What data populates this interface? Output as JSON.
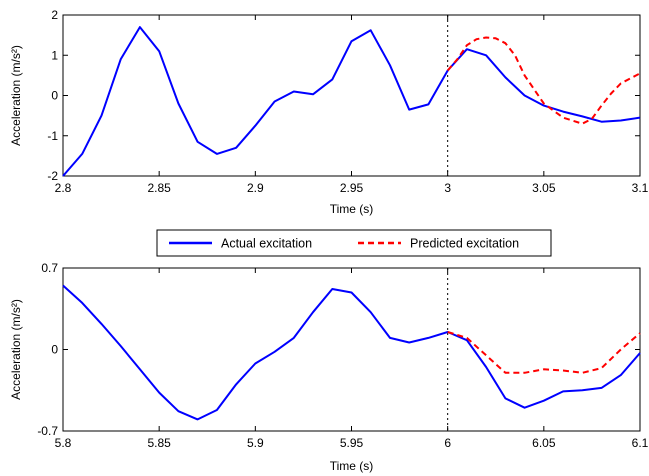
{
  "chart_data": [
    {
      "type": "line",
      "xlabel": "Time (s)",
      "ylabel": "Acceleration (m/s²)",
      "xlim": [
        2.8,
        3.1
      ],
      "ylim": [
        -2,
        2
      ],
      "xticks": [
        2.8,
        2.85,
        2.9,
        2.95,
        3,
        3.05,
        3.1
      ],
      "xtick_labels": [
        "2.8",
        "2.85",
        "2.9",
        "2.95",
        "3",
        "3.05",
        "3.1"
      ],
      "yticks": [
        -2,
        -1,
        0,
        1,
        2
      ],
      "ytick_labels": [
        "-2",
        "-1",
        "0",
        "1",
        "2"
      ],
      "divider_x": 3.0,
      "series": [
        {
          "name": "Actual excitation",
          "color": "#0000ff",
          "style": "solid",
          "x": [
            2.8,
            2.81,
            2.82,
            2.83,
            2.84,
            2.85,
            2.86,
            2.87,
            2.88,
            2.89,
            2.9,
            2.91,
            2.92,
            2.93,
            2.94,
            2.95,
            2.96,
            2.97,
            2.98,
            2.99,
            3.0,
            3.01,
            3.02,
            3.03,
            3.04,
            3.05,
            3.06,
            3.07,
            3.08,
            3.09,
            3.1
          ],
          "y": [
            -2.0,
            -1.45,
            -0.5,
            0.9,
            1.7,
            1.1,
            -0.2,
            -1.15,
            -1.45,
            -1.3,
            -0.75,
            -0.15,
            0.1,
            0.03,
            0.4,
            1.35,
            1.62,
            0.75,
            -0.35,
            -0.22,
            0.62,
            1.15,
            1.0,
            0.45,
            0.0,
            -0.25,
            -0.4,
            -0.52,
            -0.65,
            -0.62,
            -0.55
          ]
        },
        {
          "name": "Predicted excitation",
          "color": "#ff0000",
          "style": "dashed",
          "x": [
            3.0,
            3.005,
            3.01,
            3.015,
            3.02,
            3.025,
            3.03,
            3.035,
            3.04,
            3.05,
            3.06,
            3.07,
            3.075,
            3.08,
            3.085,
            3.09,
            3.1
          ],
          "y": [
            0.62,
            0.9,
            1.25,
            1.4,
            1.44,
            1.42,
            1.3,
            1.0,
            0.5,
            -0.2,
            -0.55,
            -0.7,
            -0.58,
            -0.25,
            0.05,
            0.3,
            0.55
          ]
        }
      ]
    },
    {
      "type": "line",
      "xlabel": "Time (s)",
      "ylabel": "Acceleration (m/s²)",
      "xlim": [
        5.8,
        6.1
      ],
      "ylim": [
        -0.7,
        0.7
      ],
      "xticks": [
        5.8,
        5.85,
        5.9,
        5.95,
        6,
        6.05,
        6.1
      ],
      "xtick_labels": [
        "5.8",
        "5.85",
        "5.9",
        "5.95",
        "6",
        "6.05",
        "6.1"
      ],
      "yticks": [
        -0.7,
        0,
        0.7
      ],
      "ytick_labels": [
        "-0.7",
        "0",
        "0.7"
      ],
      "divider_x": 6.0,
      "series": [
        {
          "name": "Actual excitation",
          "color": "#0000ff",
          "style": "solid",
          "x": [
            5.8,
            5.81,
            5.82,
            5.83,
            5.84,
            5.85,
            5.86,
            5.87,
            5.88,
            5.89,
            5.9,
            5.91,
            5.92,
            5.93,
            5.94,
            5.95,
            5.96,
            5.97,
            5.98,
            5.99,
            6.0,
            6.01,
            6.02,
            6.03,
            6.04,
            6.05,
            6.06,
            6.07,
            6.08,
            6.09,
            6.1
          ],
          "y": [
            0.55,
            0.4,
            0.22,
            0.03,
            -0.17,
            -0.37,
            -0.53,
            -0.6,
            -0.52,
            -0.3,
            -0.12,
            -0.02,
            0.1,
            0.32,
            0.52,
            0.49,
            0.32,
            0.1,
            0.06,
            0.1,
            0.15,
            0.08,
            -0.15,
            -0.42,
            -0.5,
            -0.44,
            -0.36,
            -0.35,
            -0.33,
            -0.22,
            -0.03
          ]
        },
        {
          "name": "Predicted excitation",
          "color": "#ff0000",
          "style": "dashed",
          "x": [
            6.0,
            6.01,
            6.02,
            6.03,
            6.04,
            6.05,
            6.06,
            6.07,
            6.08,
            6.09,
            6.1
          ],
          "y": [
            0.15,
            0.1,
            -0.05,
            -0.2,
            -0.2,
            -0.17,
            -0.18,
            -0.2,
            -0.16,
            0.0,
            0.14
          ]
        }
      ]
    }
  ],
  "legend": {
    "items": [
      {
        "label": "Actual excitation",
        "color": "#0000ff",
        "style": "solid"
      },
      {
        "label": "Predicted excitation",
        "color": "#ff0000",
        "style": "dashed"
      }
    ]
  }
}
